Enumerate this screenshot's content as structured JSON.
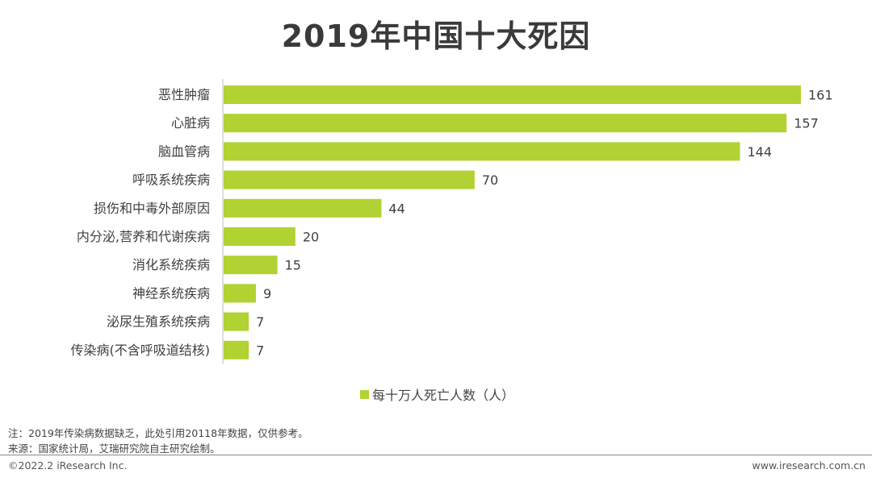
{
  "title": "2019年中国十大死因",
  "legend": {
    "label": "每十万人死亡人数（人）",
    "color": "#b1d232"
  },
  "notes": {
    "note": "注：2019年传染病数据缺乏，此处引用20118年数据，仅供参考。",
    "source": "来源：国家统计局，艾瑞研究院自主研究绘制。"
  },
  "footer": {
    "copyright": "©2022.2 iResearch Inc.",
    "website": "www.iresearch.com.cn"
  },
  "chart_data": {
    "type": "bar",
    "orientation": "horizontal",
    "title": "2019年中国十大死因",
    "categories": [
      "恶性肿瘤",
      "心脏病",
      "脑血管病",
      "呼吸系统疾病",
      "损伤和中毒外部原因",
      "内分泌,营养和代谢疾病",
      "消化系统疾病",
      "神经系统疾病",
      "泌尿生殖系统疾病",
      "传染病(不含呼吸道结核)"
    ],
    "series": [
      {
        "name": "每十万人死亡人数（人）",
        "values": [
          161,
          157,
          144,
          70,
          44,
          20,
          15,
          9,
          7,
          7
        ],
        "color": "#b1d232"
      }
    ],
    "xlim": [
      0,
      161
    ],
    "grid": false,
    "legend_position": "bottom-center",
    "data_labels": true
  }
}
